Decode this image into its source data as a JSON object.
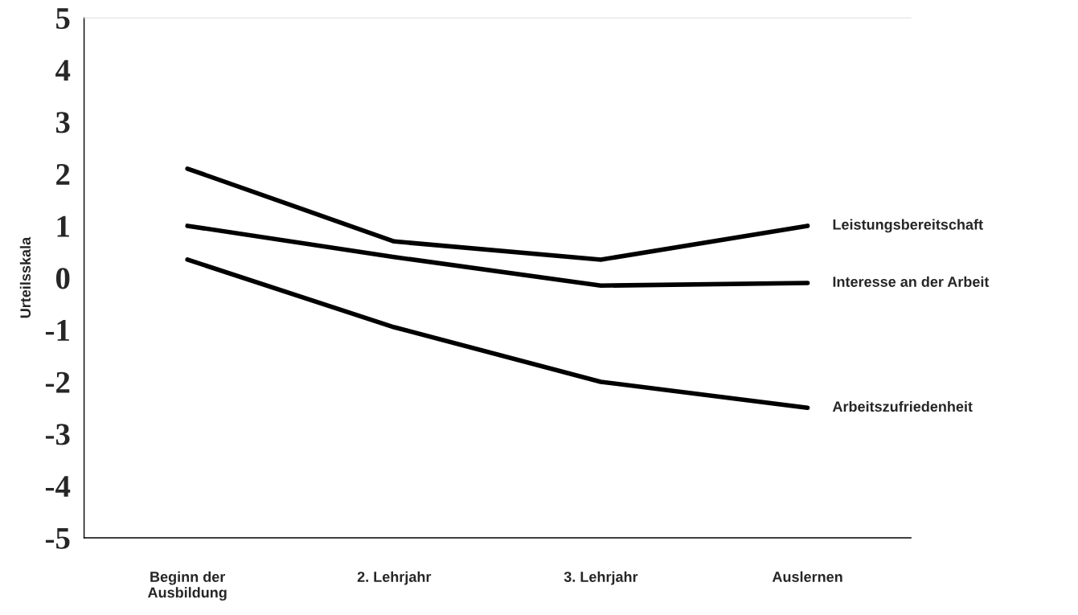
{
  "chart_data": {
    "type": "line",
    "ylabel": "Urteilsskala",
    "categories": [
      "Beginn der\nAusbildung",
      "2. Lehrjahr",
      "3. Lehrjahr",
      "Auslernen"
    ],
    "series": [
      {
        "name": "Leistungsbereitschaft",
        "color": "#000000",
        "values": [
          2.1,
          0.7,
          0.35,
          1.0
        ]
      },
      {
        "name": "Interesse an der Arbeit",
        "color": "#000000",
        "values": [
          1.0,
          0.4,
          -0.15,
          -0.1
        ]
      },
      {
        "name": "Arbeitszufriedenheit",
        "color": "#000000",
        "values": [
          0.35,
          -0.95,
          -2.0,
          -2.5
        ]
      }
    ],
    "ylim": [
      -5,
      5
    ],
    "yticks": [
      -5,
      -4,
      -3,
      -2,
      -1,
      0,
      1,
      2,
      3,
      4,
      5
    ],
    "grid": false,
    "legend": false,
    "line_style": "solid",
    "marker": "none"
  }
}
